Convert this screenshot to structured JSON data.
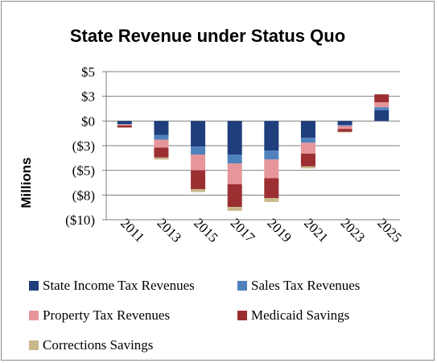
{
  "chart_data": {
    "type": "bar",
    "stacked": true,
    "title": "State Revenue under Status Quo",
    "xlabel": "",
    "ylabel": "Millions",
    "categories": [
      "2011",
      "2013",
      "2015",
      "2017",
      "2019",
      "2021",
      "2023",
      "2025"
    ],
    "ylim": [
      -10,
      5
    ],
    "ytick_values": [
      5,
      2.5,
      0,
      -2.5,
      -5,
      -7.5,
      -10
    ],
    "ytick_labels": [
      "$5",
      "$3",
      "$0",
      "($3)",
      "($5)",
      "($8)",
      "($10)"
    ],
    "grid": true,
    "legend_position": "bottom",
    "series": [
      {
        "name": "State Income Tax Revenues",
        "color": "#1f3e7c",
        "values": [
          -0.3,
          -1.4,
          -2.6,
          -3.4,
          -3.0,
          -1.7,
          -0.4,
          1.1
        ]
      },
      {
        "name": "Sales Tax Revenues",
        "color": "#4f81bd",
        "values": [
          -0.05,
          -0.5,
          -0.8,
          -0.9,
          -0.9,
          -0.5,
          -0.1,
          0.3
        ]
      },
      {
        "name": "Property Tax Revenues",
        "color": "#e6959a",
        "values": [
          -0.1,
          -0.8,
          -1.6,
          -2.1,
          -1.9,
          -1.1,
          -0.3,
          0.5
        ]
      },
      {
        "name": "Medicaid Savings",
        "color": "#9b2f32",
        "values": [
          -0.2,
          -1.0,
          -1.9,
          -2.3,
          -2.0,
          -1.3,
          -0.3,
          0.8
        ]
      },
      {
        "name": "Corrections Savings",
        "color": "#c9b98a",
        "values": [
          -0.05,
          -0.2,
          -0.3,
          -0.4,
          -0.4,
          -0.2,
          -0.05,
          0.0
        ]
      }
    ]
  }
}
